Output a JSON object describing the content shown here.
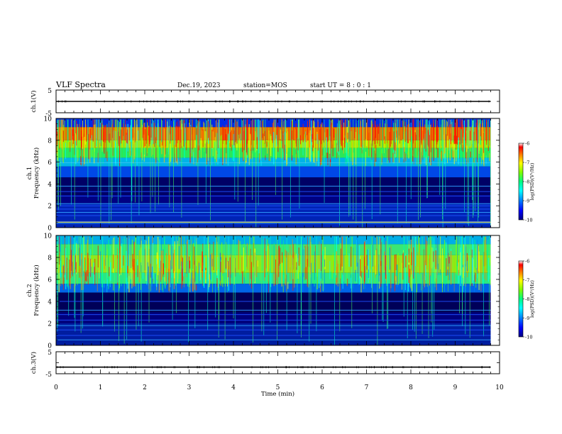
{
  "header": {
    "title": "VLF Spectra",
    "date": "Dec.19, 2023",
    "station": "station=MOS",
    "start": "start  UT =  8 : 0  : 1"
  },
  "chart_data": [
    {
      "type": "line",
      "name": "ch1-voltage",
      "ylabel": "ch.1(V)",
      "ylim": [
        -5,
        5
      ],
      "yticks": [
        "5",
        "-5"
      ],
      "x": [
        0,
        9.8
      ],
      "y": [
        0,
        0
      ]
    },
    {
      "type": "heatmap",
      "name": "ch1-spectrogram",
      "ylabel_lines": [
        "ch.1",
        "Frequency (kHz)"
      ],
      "ylim": [
        0,
        10
      ],
      "yticks": [
        "0",
        "2",
        "4",
        "6",
        "8",
        "10"
      ],
      "xlim": [
        0,
        10
      ],
      "data_end_min": 9.8,
      "colorbar": {
        "label": "log(PSD)(V²/Hz)",
        "range": [
          -10,
          -6
        ],
        "ticks": [
          "-6",
          "-7",
          "-8",
          "-9",
          "-10"
        ],
        "colors": [
          "#000080",
          "#0000ff",
          "#0080ff",
          "#00ffff",
          "#00ff80",
          "#80ff00",
          "#ffff00",
          "#ff8000",
          "#ff0000",
          "#ffffff"
        ]
      }
    },
    {
      "type": "heatmap",
      "name": "ch2-spectrogram",
      "ylabel_lines": [
        "ch.2",
        "Frequency (kHz)"
      ],
      "ylim": [
        0,
        10
      ],
      "yticks": [
        "0",
        "2",
        "4",
        "6",
        "8",
        "10"
      ],
      "xlim": [
        0,
        10
      ],
      "data_end_min": 9.8,
      "colorbar": {
        "label": "log(PSD)(V²/Hz)",
        "range": [
          -10,
          -6
        ],
        "ticks": [
          "-6",
          "-7",
          "-8",
          "-9",
          "-10"
        ],
        "colors": [
          "#000080",
          "#0000ff",
          "#0080ff",
          "#00ffff",
          "#00ff80",
          "#80ff00",
          "#ffff00",
          "#ff8000",
          "#ff0000",
          "#ffffff"
        ]
      }
    },
    {
      "type": "line",
      "name": "ch3-voltage",
      "ylabel": "ch.3(V)",
      "ylim": [
        -5,
        5
      ],
      "yticks": [
        "5",
        "-5"
      ],
      "x": [
        0,
        9.8
      ],
      "y": [
        -2,
        -2
      ]
    }
  ],
  "xaxis": {
    "label": "Time  (min)",
    "range": [
      0,
      10
    ],
    "ticks": [
      "0",
      "1",
      "2",
      "3",
      "4",
      "5",
      "6",
      "7",
      "8",
      "9",
      "10"
    ]
  }
}
